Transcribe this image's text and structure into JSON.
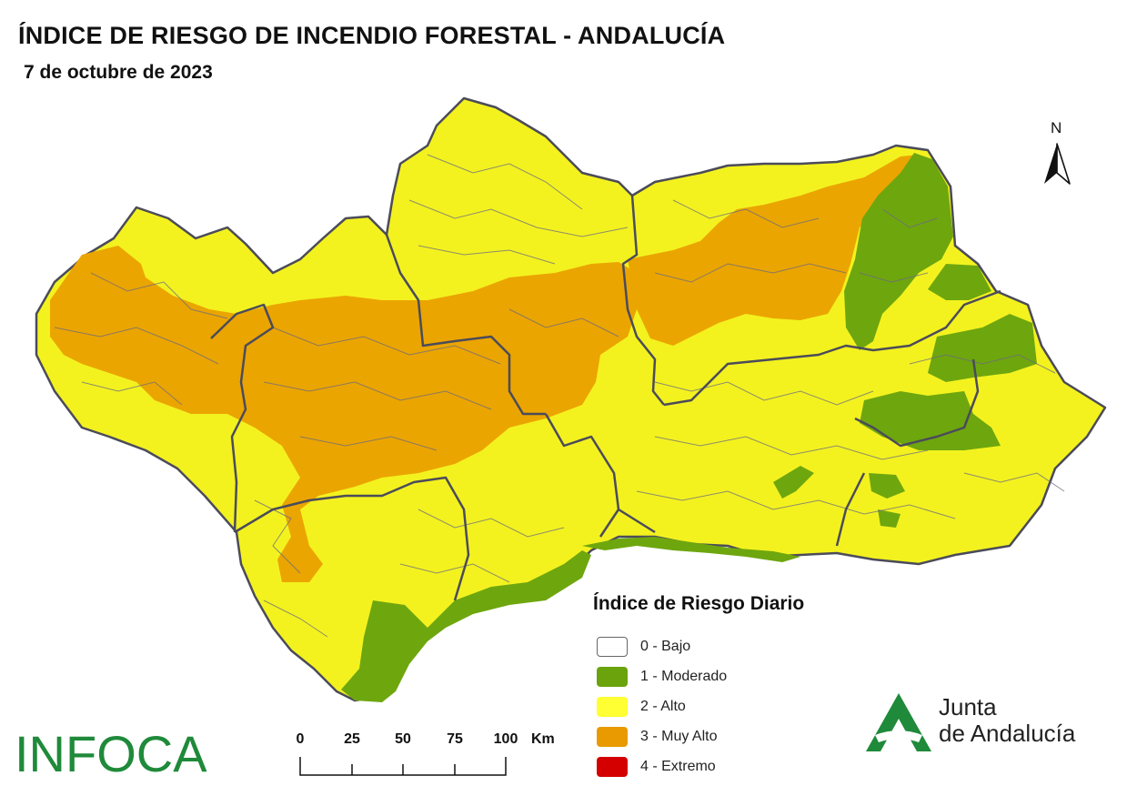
{
  "title": "ÍNDICE DE RIESGO DE INCENDIO FORESTAL - ANDALUCÍA",
  "date": "7 de octubre de 2023",
  "north_label": "N",
  "legend": {
    "title": "Índice de Riesgo Diario",
    "items": [
      {
        "label": "0 - Bajo",
        "color": "#ffffff"
      },
      {
        "label": "1 - Moderado",
        "color": "#6aa30c"
      },
      {
        "label": "2 - Alto",
        "color": "#ffff33"
      },
      {
        "label": "3 - Muy Alto",
        "color": "#e89a00"
      },
      {
        "label": "4 - Extremo",
        "color": "#d40000"
      }
    ]
  },
  "scale": {
    "ticks": [
      "0",
      "25",
      "50",
      "75",
      "100"
    ],
    "unit": "Km"
  },
  "brand": {
    "infoca": "INFOCA",
    "junta_line1": "Junta",
    "junta_line2": "de Andalucía"
  },
  "colors": {
    "region_yellow": "#f3f21f",
    "very_high_orange": "#eba500",
    "moderate_green": "#6ea60e",
    "borders": "#555566",
    "brand_green": "#1f8a3a"
  }
}
